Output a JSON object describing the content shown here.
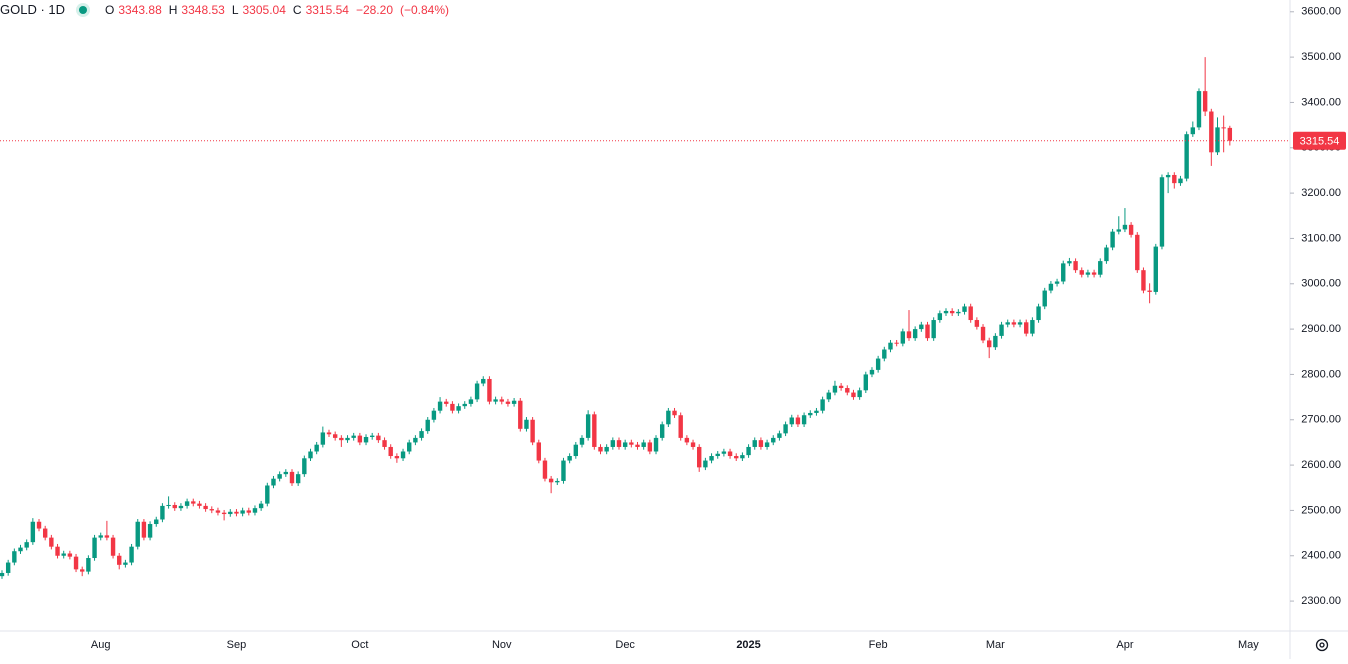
{
  "chart_data": {
    "type": "candlestick",
    "title": "GOLD · 1D",
    "ohlc_labels": [
      "O",
      "H",
      "L",
      "C"
    ],
    "change": {
      "value": -28.2,
      "label": "−28.20"
    },
    "change_pct": {
      "value": -0.84,
      "label": "(−0.84%)"
    },
    "up_color": "#089981",
    "down_color": "#f23645",
    "ylim": [
      2234,
      3626
    ],
    "yticks": [
      {
        "value": 2300,
        "label": "2300.00"
      },
      {
        "value": 2400,
        "label": "2400.00"
      },
      {
        "value": 2500,
        "label": "2500.00"
      },
      {
        "value": 2600,
        "label": "2600.00"
      },
      {
        "value": 2700,
        "label": "2700.00"
      },
      {
        "value": 2800,
        "label": "2800.00"
      },
      {
        "value": 2900,
        "label": "2900.00"
      },
      {
        "value": 3000,
        "label": "3000.00"
      },
      {
        "value": 3100,
        "label": "3100.00"
      },
      {
        "value": 3200,
        "label": "3200.00"
      },
      {
        "value": 3300,
        "label": "3300.00"
      },
      {
        "value": 3400,
        "label": "3400.00"
      },
      {
        "value": 3500,
        "label": "3500.00"
      },
      {
        "value": 3600,
        "label": "3600.00"
      }
    ],
    "grid": false,
    "categories": [
      null,
      null,
      null,
      null,
      null,
      null,
      null,
      null,
      null,
      null,
      null,
      null,
      null,
      null,
      null,
      null,
      "Aug",
      null,
      null,
      null,
      null,
      null,
      null,
      null,
      null,
      null,
      null,
      null,
      null,
      null,
      null,
      null,
      null,
      null,
      null,
      null,
      null,
      null,
      "Sep",
      null,
      null,
      null,
      null,
      null,
      null,
      null,
      null,
      null,
      null,
      null,
      null,
      null,
      null,
      null,
      null,
      null,
      null,
      null,
      "Oct",
      null,
      null,
      null,
      null,
      null,
      null,
      null,
      null,
      null,
      null,
      null,
      null,
      null,
      null,
      null,
      null,
      null,
      null,
      null,
      null,
      null,
      null,
      "Nov",
      null,
      null,
      null,
      null,
      null,
      null,
      null,
      null,
      null,
      null,
      null,
      null,
      null,
      null,
      null,
      null,
      null,
      null,
      null,
      "Dec",
      null,
      null,
      null,
      null,
      null,
      null,
      null,
      null,
      null,
      null,
      null,
      null,
      null,
      null,
      null,
      null,
      null,
      null,
      null,
      "2025",
      null,
      null,
      null,
      null,
      null,
      null,
      null,
      null,
      null,
      null,
      null,
      null,
      null,
      null,
      null,
      null,
      null,
      null,
      null,
      null,
      "Feb",
      null,
      null,
      null,
      null,
      null,
      null,
      null,
      null,
      null,
      null,
      null,
      null,
      null,
      null,
      null,
      null,
      null,
      null,
      "Mar",
      null,
      null,
      null,
      null,
      null,
      null,
      null,
      null,
      null,
      null,
      null,
      null,
      null,
      null,
      null,
      null,
      null,
      null,
      null,
      null,
      "Apr",
      null,
      null,
      null,
      null,
      null,
      null,
      null,
      null,
      null,
      null,
      null,
      null,
      null,
      null,
      null,
      null,
      null,
      null,
      null,
      "May"
    ],
    "candles": [
      [
        2355,
        2368,
        2349,
        2362
      ],
      [
        2362,
        2391,
        2356,
        2385
      ],
      [
        2385,
        2416,
        2379,
        2410
      ],
      [
        2410,
        2424,
        2404,
        2418
      ],
      [
        2418,
        2436,
        2412,
        2430
      ],
      [
        2430,
        2483,
        2424,
        2475
      ],
      [
        2475,
        2481,
        2454,
        2460
      ],
      [
        2460,
        2466,
        2434,
        2440
      ],
      [
        2440,
        2446,
        2414,
        2420
      ],
      [
        2420,
        2426,
        2394,
        2400
      ],
      [
        2400,
        2411,
        2394,
        2405
      ],
      [
        2405,
        2411,
        2392,
        2398
      ],
      [
        2398,
        2404,
        2364,
        2370
      ],
      [
        2370,
        2376,
        2355,
        2365
      ],
      [
        2365,
        2401,
        2359,
        2395
      ],
      [
        2395,
        2446,
        2389,
        2440
      ],
      [
        2440,
        2451,
        2434,
        2445
      ],
      [
        2445,
        2477,
        2434,
        2440
      ],
      [
        2440,
        2446,
        2394,
        2400
      ],
      [
        2400,
        2406,
        2370,
        2380
      ],
      [
        2380,
        2391,
        2374,
        2385
      ],
      [
        2385,
        2426,
        2379,
        2420
      ],
      [
        2420,
        2481,
        2414,
        2475
      ],
      [
        2475,
        2481,
        2434,
        2440
      ],
      [
        2440,
        2476,
        2434,
        2470
      ],
      [
        2470,
        2486,
        2464,
        2480
      ],
      [
        2480,
        2516,
        2474,
        2510
      ],
      [
        2510,
        2531,
        2504,
        2512
      ],
      [
        2512,
        2518,
        2499,
        2505
      ],
      [
        2505,
        2516,
        2499,
        2510
      ],
      [
        2510,
        2526,
        2504,
        2520
      ],
      [
        2520,
        2526,
        2509,
        2515
      ],
      [
        2515,
        2521,
        2504,
        2510
      ],
      [
        2510,
        2516,
        2497,
        2503
      ],
      [
        2503,
        2509,
        2494,
        2500
      ],
      [
        2500,
        2506,
        2489,
        2495
      ],
      [
        2495,
        2501,
        2478,
        2492
      ],
      [
        2492,
        2503,
        2486,
        2497
      ],
      [
        2497,
        2503,
        2487,
        2493
      ],
      [
        2493,
        2506,
        2487,
        2500
      ],
      [
        2500,
        2506,
        2489,
        2495
      ],
      [
        2495,
        2511,
        2489,
        2505
      ],
      [
        2505,
        2521,
        2499,
        2515
      ],
      [
        2515,
        2561,
        2509,
        2555
      ],
      [
        2555,
        2576,
        2549,
        2570
      ],
      [
        2570,
        2586,
        2564,
        2580
      ],
      [
        2580,
        2591,
        2574,
        2585
      ],
      [
        2585,
        2591,
        2554,
        2560
      ],
      [
        2560,
        2586,
        2554,
        2580
      ],
      [
        2580,
        2621,
        2574,
        2615
      ],
      [
        2615,
        2636,
        2609,
        2630
      ],
      [
        2630,
        2651,
        2624,
        2645
      ],
      [
        2645,
        2685,
        2639,
        2672
      ],
      [
        2672,
        2678,
        2662,
        2668
      ],
      [
        2668,
        2674,
        2654,
        2660
      ],
      [
        2660,
        2666,
        2640,
        2655
      ],
      [
        2655,
        2666,
        2649,
        2660
      ],
      [
        2660,
        2671,
        2654,
        2665
      ],
      [
        2665,
        2671,
        2644,
        2650
      ],
      [
        2650,
        2668,
        2644,
        2662
      ],
      [
        2662,
        2671,
        2656,
        2665
      ],
      [
        2665,
        2671,
        2649,
        2655
      ],
      [
        2655,
        2661,
        2634,
        2640
      ],
      [
        2640,
        2646,
        2614,
        2620
      ],
      [
        2620,
        2626,
        2605,
        2615
      ],
      [
        2615,
        2636,
        2609,
        2630
      ],
      [
        2630,
        2656,
        2624,
        2650
      ],
      [
        2650,
        2666,
        2644,
        2660
      ],
      [
        2660,
        2681,
        2654,
        2675
      ],
      [
        2675,
        2706,
        2669,
        2700
      ],
      [
        2700,
        2726,
        2694,
        2720
      ],
      [
        2720,
        2750,
        2714,
        2740
      ],
      [
        2740,
        2746,
        2729,
        2735
      ],
      [
        2735,
        2741,
        2714,
        2720
      ],
      [
        2720,
        2736,
        2714,
        2730
      ],
      [
        2730,
        2741,
        2724,
        2735
      ],
      [
        2735,
        2751,
        2729,
        2745
      ],
      [
        2745,
        2786,
        2739,
        2780
      ],
      [
        2780,
        2796,
        2774,
        2790
      ],
      [
        2790,
        2796,
        2734,
        2740
      ],
      [
        2740,
        2751,
        2734,
        2745
      ],
      [
        2745,
        2751,
        2734,
        2740
      ],
      [
        2740,
        2746,
        2729,
        2735
      ],
      [
        2735,
        2748,
        2729,
        2742
      ],
      [
        2742,
        2748,
        2674,
        2680
      ],
      [
        2680,
        2706,
        2674,
        2700
      ],
      [
        2700,
        2706,
        2644,
        2650
      ],
      [
        2650,
        2656,
        2604,
        2610
      ],
      [
        2610,
        2616,
        2564,
        2570
      ],
      [
        2570,
        2576,
        2538,
        2562
      ],
      [
        2562,
        2571,
        2556,
        2565
      ],
      [
        2565,
        2616,
        2559,
        2610
      ],
      [
        2610,
        2626,
        2604,
        2620
      ],
      [
        2620,
        2651,
        2614,
        2645
      ],
      [
        2645,
        2666,
        2639,
        2660
      ],
      [
        2660,
        2721,
        2654,
        2712
      ],
      [
        2712,
        2718,
        2634,
        2640
      ],
      [
        2640,
        2646,
        2624,
        2630
      ],
      [
        2630,
        2646,
        2624,
        2640
      ],
      [
        2640,
        2661,
        2634,
        2655
      ],
      [
        2655,
        2661,
        2634,
        2640
      ],
      [
        2640,
        2656,
        2634,
        2650
      ],
      [
        2650,
        2656,
        2639,
        2645
      ],
      [
        2645,
        2651,
        2634,
        2640
      ],
      [
        2640,
        2656,
        2634,
        2650
      ],
      [
        2650,
        2656,
        2624,
        2630
      ],
      [
        2630,
        2666,
        2624,
        2660
      ],
      [
        2660,
        2696,
        2654,
        2690
      ],
      [
        2690,
        2726,
        2684,
        2720
      ],
      [
        2720,
        2726,
        2704,
        2710
      ],
      [
        2710,
        2716,
        2654,
        2660
      ],
      [
        2660,
        2666,
        2644,
        2650
      ],
      [
        2650,
        2656,
        2634,
        2640
      ],
      [
        2640,
        2646,
        2585,
        2595
      ],
      [
        2595,
        2616,
        2589,
        2610
      ],
      [
        2610,
        2626,
        2604,
        2620
      ],
      [
        2620,
        2631,
        2614,
        2625
      ],
      [
        2625,
        2636,
        2619,
        2630
      ],
      [
        2630,
        2636,
        2614,
        2620
      ],
      [
        2620,
        2626,
        2609,
        2615
      ],
      [
        2615,
        2628,
        2609,
        2622
      ],
      [
        2622,
        2646,
        2616,
        2640
      ],
      [
        2640,
        2661,
        2634,
        2655
      ],
      [
        2655,
        2661,
        2634,
        2640
      ],
      [
        2640,
        2656,
        2634,
        2650
      ],
      [
        2650,
        2666,
        2644,
        2660
      ],
      [
        2660,
        2676,
        2654,
        2670
      ],
      [
        2670,
        2696,
        2664,
        2690
      ],
      [
        2690,
        2711,
        2684,
        2705
      ],
      [
        2705,
        2711,
        2684,
        2690
      ],
      [
        2690,
        2716,
        2684,
        2710
      ],
      [
        2710,
        2721,
        2704,
        2715
      ],
      [
        2715,
        2726,
        2709,
        2720
      ],
      [
        2720,
        2751,
        2714,
        2745
      ],
      [
        2745,
        2766,
        2739,
        2760
      ],
      [
        2760,
        2786,
        2754,
        2775
      ],
      [
        2775,
        2781,
        2764,
        2770
      ],
      [
        2770,
        2776,
        2754,
        2760
      ],
      [
        2760,
        2766,
        2744,
        2750
      ],
      [
        2750,
        2771,
        2744,
        2765
      ],
      [
        2765,
        2806,
        2759,
        2800
      ],
      [
        2800,
        2816,
        2794,
        2810
      ],
      [
        2810,
        2841,
        2804,
        2835
      ],
      [
        2835,
        2861,
        2829,
        2855
      ],
      [
        2855,
        2876,
        2849,
        2870
      ],
      [
        2870,
        2876,
        2862,
        2868
      ],
      [
        2868,
        2901,
        2862,
        2895
      ],
      [
        2895,
        2942,
        2874,
        2880
      ],
      [
        2880,
        2906,
        2874,
        2900
      ],
      [
        2900,
        2916,
        2894,
        2910
      ],
      [
        2910,
        2916,
        2874,
        2880
      ],
      [
        2880,
        2926,
        2874,
        2920
      ],
      [
        2920,
        2941,
        2914,
        2935
      ],
      [
        2935,
        2946,
        2929,
        2940
      ],
      [
        2940,
        2946,
        2929,
        2935
      ],
      [
        2935,
        2944,
        2929,
        2938
      ],
      [
        2938,
        2956,
        2932,
        2950
      ],
      [
        2950,
        2956,
        2914,
        2920
      ],
      [
        2920,
        2926,
        2899,
        2905
      ],
      [
        2905,
        2911,
        2869,
        2875
      ],
      [
        2875,
        2881,
        2836,
        2860
      ],
      [
        2860,
        2891,
        2854,
        2885
      ],
      [
        2885,
        2916,
        2879,
        2910
      ],
      [
        2910,
        2921,
        2904,
        2915
      ],
      [
        2915,
        2921,
        2904,
        2910
      ],
      [
        2910,
        2921,
        2904,
        2915
      ],
      [
        2915,
        2921,
        2884,
        2890
      ],
      [
        2890,
        2926,
        2884,
        2920
      ],
      [
        2920,
        2956,
        2914,
        2950
      ],
      [
        2950,
        2991,
        2944,
        2985
      ],
      [
        2985,
        3006,
        2979,
        3000
      ],
      [
        3000,
        3011,
        2994,
        3005
      ],
      [
        3005,
        3051,
        2999,
        3045
      ],
      [
        3045,
        3057,
        3039,
        3050
      ],
      [
        3050,
        3056,
        3024,
        3030
      ],
      [
        3030,
        3036,
        3014,
        3020
      ],
      [
        3020,
        3031,
        3014,
        3025
      ],
      [
        3025,
        3031,
        3014,
        3020
      ],
      [
        3020,
        3056,
        3014,
        3050
      ],
      [
        3050,
        3086,
        3044,
        3080
      ],
      [
        3080,
        3121,
        3074,
        3115
      ],
      [
        3115,
        3149,
        3109,
        3120
      ],
      [
        3120,
        3167,
        3114,
        3130
      ],
      [
        3130,
        3136,
        3102,
        3108
      ],
      [
        3108,
        3114,
        3024,
        3030
      ],
      [
        3030,
        3036,
        2979,
        2985
      ],
      [
        2985,
        3001,
        2957,
        2982
      ],
      [
        2982,
        3088,
        2976,
        3082
      ],
      [
        3082,
        3241,
        3076,
        3235
      ],
      [
        3235,
        3246,
        3200,
        3240
      ],
      [
        3240,
        3246,
        3210,
        3222
      ],
      [
        3222,
        3238,
        3216,
        3232
      ],
      [
        3232,
        3336,
        3226,
        3330
      ],
      [
        3330,
        3358,
        3324,
        3345
      ],
      [
        3345,
        3431,
        3339,
        3425
      ],
      [
        3425,
        3500,
        3370,
        3380
      ],
      [
        3380,
        3386,
        3260,
        3290
      ],
      [
        3290,
        3367,
        3284,
        3345
      ],
      [
        3345,
        3371,
        3290,
        3343.74
      ],
      [
        3343.88,
        3348.53,
        3305.04,
        3315.54
      ],
      null,
      null,
      null
    ]
  }
}
